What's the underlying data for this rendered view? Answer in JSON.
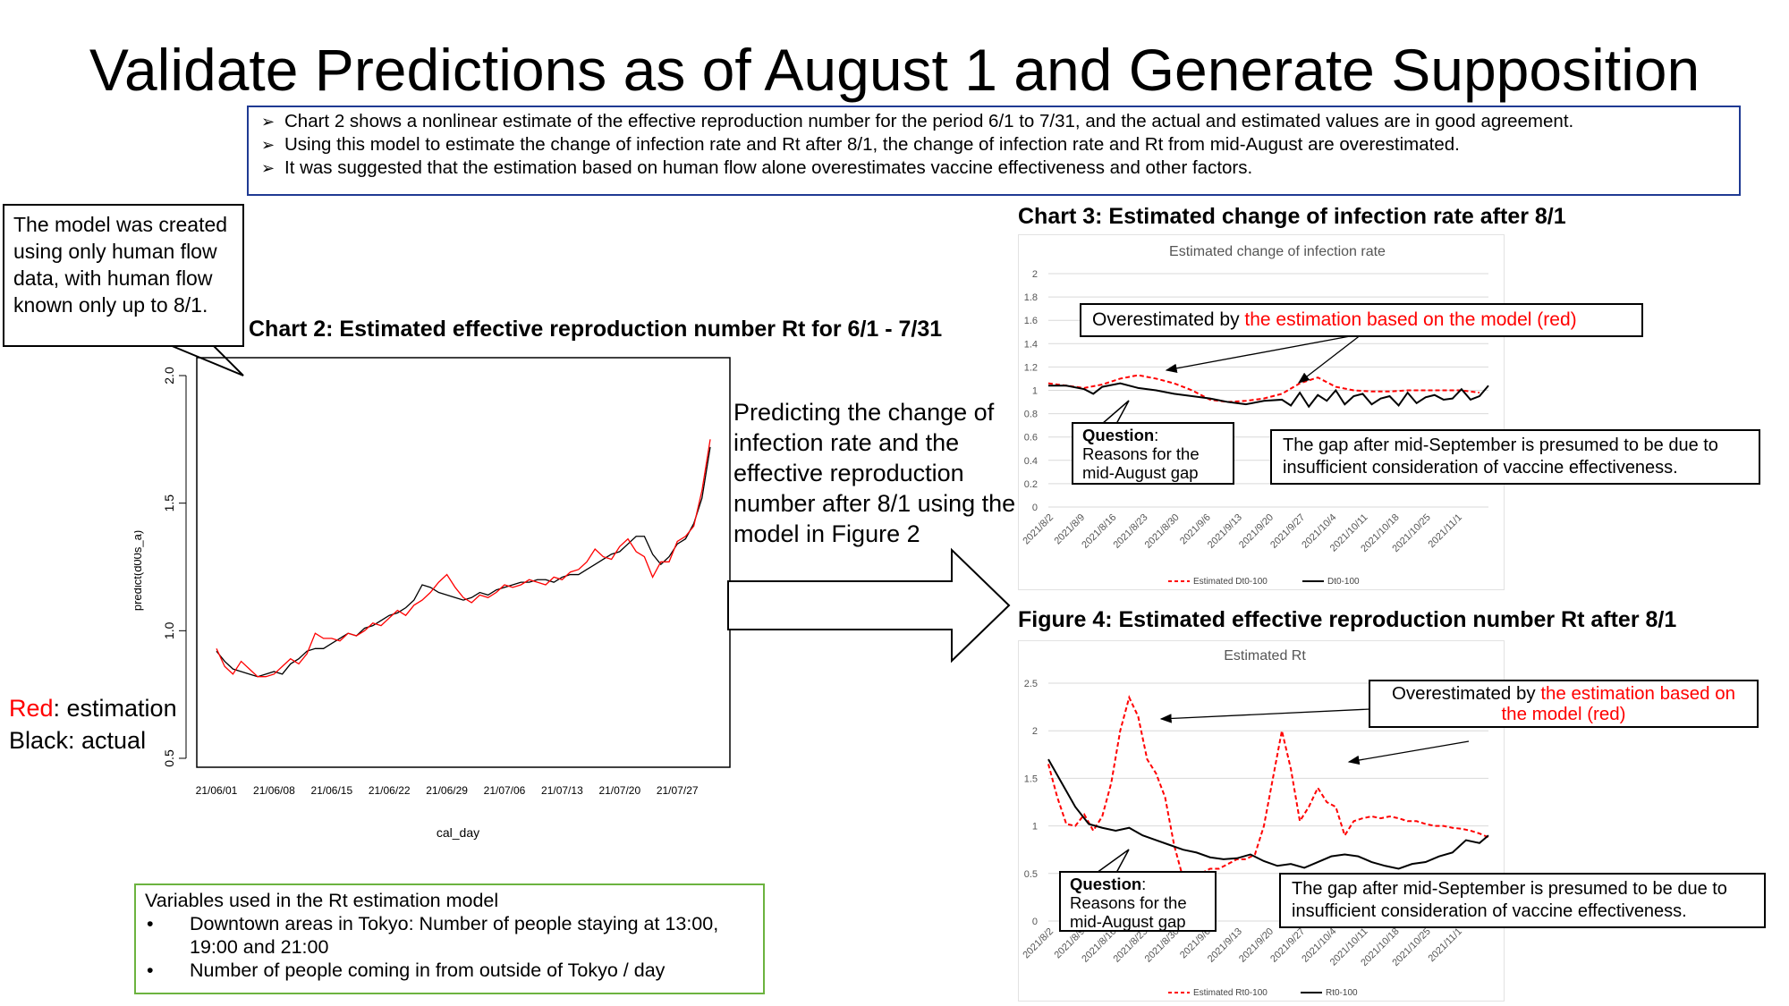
{
  "slide": {
    "title": "Validate Predictions as of August 1 and Generate Supposition",
    "summary_bullets": [
      "Chart 2 shows a nonlinear estimate of the effective reproduction number for the period 6/1 to 7/31, and the actual and estimated values are in good agreement.",
      "Using this model to estimate the change of infection rate and Rt after 8/1, the change of infection rate and Rt from mid-August are overestimated.",
      "It was suggested that the estimation based on human flow alone overestimates vaccine effectiveness and other factors."
    ],
    "model_note": "The model was created using only human flow data, with human flow known only up to 8/1.",
    "chart2_heading": "Chart 2: Estimated effective reproduction number Rt for 6/1 - 7/31",
    "chart3_heading": "Chart 3: Estimated change of infection rate after 8/1",
    "fig4_heading": "Figure 4: Estimated effective reproduction number Rt after 8/1",
    "legend_red": "Red",
    "legend_red_rest": ": estimation",
    "legend_black": "Black: actual",
    "predict_text": "Predicting the change of infection rate and the effective reproduction number after 8/1 using the model in Figure 2",
    "variables_title": "Variables used in the Rt estimation model",
    "variables": [
      "Downtown areas in Tokyo: Number of people staying at 13:00, 19:00 and 21:00",
      "Number of people coming in from outside of Tokyo / day"
    ],
    "chart3_annotation_prefix": "Overestimated by ",
    "chart3_annotation_red": "the estimation based on the model (red)",
    "chart3_question_bold": "Question",
    "chart3_question_rest": ":",
    "chart3_question_lines": [
      "Reasons for the",
      "mid-August gap"
    ],
    "chart3_gap_note": "The gap after mid-September is presumed to be due to insufficient consideration of vaccine effectiveness.",
    "fig4_annotation_prefix": "Overestimated by ",
    "fig4_annotation_red": "the estimation based on the model (red)",
    "fig4_question_bold": "Question",
    "fig4_question_rest": ":",
    "fig4_question_lines": [
      "Reasons for the",
      "mid-August gap"
    ],
    "fig4_gap_note": "The gap after mid-September is presumed to be due to insufficient consideration of vaccine effectiveness."
  },
  "colors": {
    "estimation": "#ff0000",
    "actual": "#000000",
    "summary_border": "#1f3a93",
    "variables_border": "#6cb33f"
  },
  "chart_data": [
    {
      "type": "line",
      "id": "chart2",
      "title": "",
      "xlabel": "cal_day",
      "ylabel": "predict(d00s_a)",
      "ylim": [
        0.5,
        2.0
      ],
      "yticks": [
        0.5,
        1.0,
        1.5,
        2.0
      ],
      "ytick_labels": [
        "0.5",
        "1.0",
        "1.5",
        "2.0"
      ],
      "xtick_labels": [
        "21/06/01",
        "21/06/08",
        "21/06/15",
        "21/06/22",
        "21/06/29",
        "21/07/06",
        "21/07/13",
        "21/07/20",
        "21/07/27"
      ],
      "xtick_days": [
        0,
        7,
        14,
        21,
        28,
        35,
        42,
        49,
        56
      ],
      "xlim": [
        0,
        60
      ],
      "series": [
        {
          "color": "#000000",
          "x": [
            0,
            1,
            2,
            3,
            4,
            5,
            6,
            7,
            8,
            9,
            10,
            11,
            12,
            13,
            14,
            15,
            16,
            17,
            18,
            19,
            20,
            21,
            22,
            23,
            24,
            25,
            26,
            27,
            28,
            29,
            30,
            31,
            32,
            33,
            34,
            35,
            36,
            37,
            38,
            39,
            40,
            41,
            42,
            43,
            44,
            45,
            46,
            47,
            48,
            49,
            50,
            51,
            52,
            53,
            54,
            55,
            56,
            57,
            58,
            59,
            60
          ],
          "values": [
            0.92,
            0.88,
            0.85,
            0.84,
            0.83,
            0.82,
            0.83,
            0.84,
            0.83,
            0.87,
            0.89,
            0.92,
            0.93,
            0.93,
            0.95,
            0.97,
            0.99,
            0.98,
            1.01,
            1.02,
            1.04,
            1.06,
            1.07,
            1.09,
            1.12,
            1.18,
            1.17,
            1.15,
            1.14,
            1.13,
            1.12,
            1.13,
            1.15,
            1.14,
            1.16,
            1.17,
            1.18,
            1.19,
            1.19,
            1.2,
            1.2,
            1.19,
            1.21,
            1.22,
            1.22,
            1.24,
            1.26,
            1.28,
            1.3,
            1.31,
            1.34,
            1.37,
            1.37,
            1.3,
            1.26,
            1.29,
            1.34,
            1.36,
            1.42,
            1.52,
            1.72
          ]
        },
        {
          "color": "#ff0000",
          "x": [
            0,
            1,
            2,
            3,
            4,
            5,
            6,
            7,
            8,
            9,
            10,
            11,
            12,
            13,
            14,
            15,
            16,
            17,
            18,
            19,
            20,
            21,
            22,
            23,
            24,
            25,
            26,
            27,
            28,
            29,
            30,
            31,
            32,
            33,
            34,
            35,
            36,
            37,
            38,
            39,
            40,
            41,
            42,
            43,
            44,
            45,
            46,
            47,
            48,
            49,
            50,
            51,
            52,
            53,
            54,
            55,
            56,
            57,
            58,
            59,
            60
          ],
          "values": [
            0.93,
            0.86,
            0.83,
            0.88,
            0.85,
            0.82,
            0.82,
            0.83,
            0.86,
            0.89,
            0.87,
            0.91,
            0.99,
            0.97,
            0.97,
            0.96,
            0.99,
            0.98,
            1.0,
            1.03,
            1.02,
            1.05,
            1.08,
            1.06,
            1.1,
            1.12,
            1.15,
            1.19,
            1.22,
            1.17,
            1.13,
            1.11,
            1.14,
            1.13,
            1.15,
            1.18,
            1.17,
            1.18,
            1.2,
            1.19,
            1.18,
            1.21,
            1.2,
            1.23,
            1.24,
            1.27,
            1.32,
            1.29,
            1.28,
            1.33,
            1.36,
            1.31,
            1.29,
            1.21,
            1.27,
            1.27,
            1.35,
            1.37,
            1.41,
            1.55,
            1.75
          ]
        }
      ]
    },
    {
      "type": "line",
      "id": "chart3",
      "title": "Estimated change of infection rate",
      "ylim": [
        0,
        2
      ],
      "yticks": [
        0,
        0.2,
        0.4,
        0.6,
        0.8,
        1,
        1.2,
        1.4,
        1.6,
        1.8,
        2
      ],
      "ytick_labels": [
        "0",
        "0.2",
        "0.4",
        "0.6",
        "0.8",
        "1",
        "1.2",
        "1.4",
        "1.6",
        "1.8",
        "2"
      ],
      "xtick_labels": [
        "2021/8/2",
        "2021/8/9",
        "2021/8/16",
        "2021/8/23",
        "2021/8/30",
        "2021/9/6",
        "2021/9/13",
        "2021/9/20",
        "2021/9/27",
        "2021/10/4",
        "2021/10/11",
        "2021/10/18",
        "2021/10/25",
        "2021/11/1"
      ],
      "xlim": [
        0,
        98
      ],
      "series": [
        {
          "name": "Estimated Dt0-100",
          "color": "#ff0000",
          "dash": true,
          "x": [
            0,
            4,
            8,
            12,
            16,
            20,
            24,
            28,
            32,
            36,
            40,
            44,
            48,
            52,
            56,
            60,
            64,
            68,
            72,
            76,
            80,
            84,
            88,
            92,
            96
          ],
          "values": [
            1.06,
            1.04,
            1.02,
            1.05,
            1.1,
            1.13,
            1.1,
            1.06,
            1.0,
            0.92,
            0.9,
            0.91,
            0.93,
            0.97,
            1.06,
            1.11,
            1.03,
            1.0,
            0.99,
            0.99,
            1.0,
            1.0,
            1.0,
            1.0,
            0.98
          ]
        },
        {
          "name": "Dt0-100",
          "color": "#000000",
          "dash": false,
          "x": [
            0,
            4,
            8,
            10,
            12,
            16,
            20,
            24,
            28,
            32,
            36,
            40,
            44,
            48,
            52,
            54,
            56,
            58,
            60,
            62,
            64,
            66,
            68,
            70,
            72,
            74,
            76,
            78,
            80,
            82,
            84,
            86,
            88,
            90,
            92,
            94,
            96,
            98
          ],
          "values": [
            1.04,
            1.04,
            1.01,
            0.97,
            1.03,
            1.06,
            1.02,
            1.0,
            0.97,
            0.95,
            0.93,
            0.9,
            0.88,
            0.91,
            0.92,
            0.87,
            0.98,
            0.86,
            0.96,
            0.91,
            1.0,
            0.88,
            0.95,
            0.97,
            0.88,
            0.93,
            0.95,
            0.87,
            0.98,
            0.89,
            0.94,
            0.96,
            0.92,
            0.93,
            1.01,
            0.92,
            0.95,
            1.04
          ]
        }
      ]
    },
    {
      "type": "line",
      "id": "fig4",
      "title": "Estimated Rt",
      "ylim": [
        0,
        2.5
      ],
      "yticks": [
        0,
        0.5,
        1,
        1.5,
        2,
        2.5
      ],
      "ytick_labels": [
        "0",
        "0.5",
        "1",
        "1.5",
        "2",
        "2.5"
      ],
      "xtick_labels": [
        "2021/8/2",
        "2021/8/9",
        "2021/8/16",
        "2021/8/23",
        "2021/8/30",
        "2021/9/6",
        "2021/9/13",
        "2021/9/20",
        "2021/9/27",
        "2021/10/4",
        "2021/10/11",
        "2021/10/18",
        "2021/10/25",
        "2021/11/1"
      ],
      "xlim": [
        0,
        98
      ],
      "series": [
        {
          "name": "Estimated Rt0-100",
          "color": "#ff0000",
          "dash": true,
          "x": [
            0,
            2,
            4,
            6,
            8,
            10,
            12,
            14,
            16,
            18,
            20,
            22,
            24,
            26,
            28,
            30,
            32,
            34,
            36,
            38,
            40,
            42,
            44,
            46,
            48,
            50,
            52,
            54,
            56,
            58,
            60,
            62,
            64,
            66,
            68,
            70,
            72,
            74,
            76,
            78,
            80,
            82,
            84,
            86,
            88,
            90,
            92,
            94,
            96,
            98
          ],
          "values": [
            1.65,
            1.3,
            1.02,
            1.0,
            1.12,
            0.95,
            1.1,
            1.45,
            2.0,
            2.35,
            2.15,
            1.7,
            1.55,
            1.3,
            0.8,
            0.45,
            0.4,
            0.5,
            0.55,
            0.55,
            0.6,
            0.65,
            0.65,
            0.7,
            1.0,
            1.5,
            2.0,
            1.6,
            1.05,
            1.2,
            1.4,
            1.25,
            1.2,
            0.9,
            1.05,
            1.08,
            1.1,
            1.08,
            1.1,
            1.08,
            1.05,
            1.05,
            1.02,
            1.0,
            1.0,
            0.98,
            0.97,
            0.95,
            0.92,
            0.88
          ]
        },
        {
          "name": "Rt0-100",
          "color": "#000000",
          "dash": false,
          "x": [
            0,
            3,
            6,
            9,
            12,
            15,
            18,
            21,
            24,
            27,
            30,
            33,
            36,
            39,
            42,
            45,
            48,
            51,
            54,
            57,
            60,
            63,
            66,
            69,
            72,
            75,
            78,
            81,
            84,
            87,
            90,
            93,
            96,
            98
          ],
          "values": [
            1.7,
            1.45,
            1.2,
            1.02,
            0.98,
            0.95,
            0.98,
            0.9,
            0.85,
            0.8,
            0.75,
            0.72,
            0.67,
            0.65,
            0.66,
            0.7,
            0.63,
            0.58,
            0.6,
            0.56,
            0.62,
            0.68,
            0.7,
            0.68,
            0.62,
            0.58,
            0.55,
            0.6,
            0.62,
            0.68,
            0.72,
            0.85,
            0.82,
            0.9
          ]
        }
      ]
    }
  ]
}
